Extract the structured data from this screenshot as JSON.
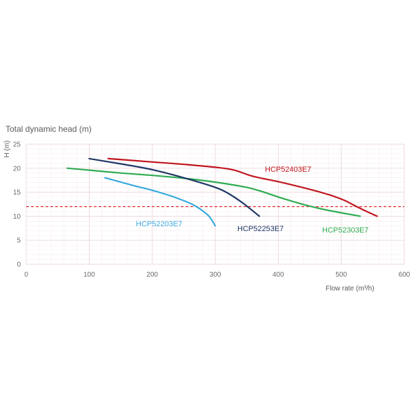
{
  "chart_data": {
    "type": "line",
    "title": "Total dynamic head (m)",
    "xlabel": "Flow rate (m³/h)",
    "ylabel": "H (m)",
    "xlim": [
      0,
      600
    ],
    "ylim": [
      0,
      25
    ],
    "x_ticks": [
      0,
      100,
      200,
      300,
      400,
      500,
      600
    ],
    "y_ticks": [
      0,
      5,
      10,
      15,
      20,
      25
    ],
    "grid": true,
    "reference_lines": [
      {
        "y": 12,
        "color": "#e2262b",
        "style": "dashed"
      }
    ],
    "series": [
      {
        "name": "HCP52403E7",
        "color": "#c0161d",
        "points": [
          [
            130,
            22
          ],
          [
            200,
            21.3
          ],
          [
            250,
            20.8
          ],
          [
            300,
            20.2
          ],
          [
            330,
            19.6
          ],
          [
            360,
            18.3
          ],
          [
            400,
            17.2
          ],
          [
            450,
            15.6
          ],
          [
            480,
            14.5
          ],
          [
            505,
            13.3
          ],
          [
            520,
            12.3
          ],
          [
            540,
            11
          ],
          [
            557,
            10
          ]
        ]
      },
      {
        "name": "HCP52303E7",
        "color": "#2fab52",
        "points": [
          [
            65,
            20
          ],
          [
            100,
            19.6
          ],
          [
            150,
            19
          ],
          [
            200,
            18.5
          ],
          [
            250,
            17.9
          ],
          [
            300,
            17.1
          ],
          [
            350,
            16
          ],
          [
            375,
            15.1
          ],
          [
            400,
            14
          ],
          [
            425,
            13
          ],
          [
            450,
            12.1
          ],
          [
            480,
            11.2
          ],
          [
            530,
            10
          ]
        ]
      },
      {
        "name": "HCP52253E7",
        "color": "#1f3766",
        "points": [
          [
            100,
            22
          ],
          [
            150,
            20.9
          ],
          [
            200,
            19.7
          ],
          [
            250,
            18
          ],
          [
            300,
            16
          ],
          [
            320,
            14.8
          ],
          [
            340,
            13.1
          ],
          [
            355,
            11.6
          ],
          [
            370,
            10
          ]
        ]
      },
      {
        "name": "HCP52203E7",
        "color": "#3aaae0",
        "points": [
          [
            125,
            18
          ],
          [
            170,
            16.4
          ],
          [
            200,
            15.4
          ],
          [
            230,
            14.2
          ],
          [
            260,
            12.7
          ],
          [
            275,
            11.6
          ],
          [
            290,
            10
          ],
          [
            300,
            8
          ]
        ]
      }
    ]
  }
}
